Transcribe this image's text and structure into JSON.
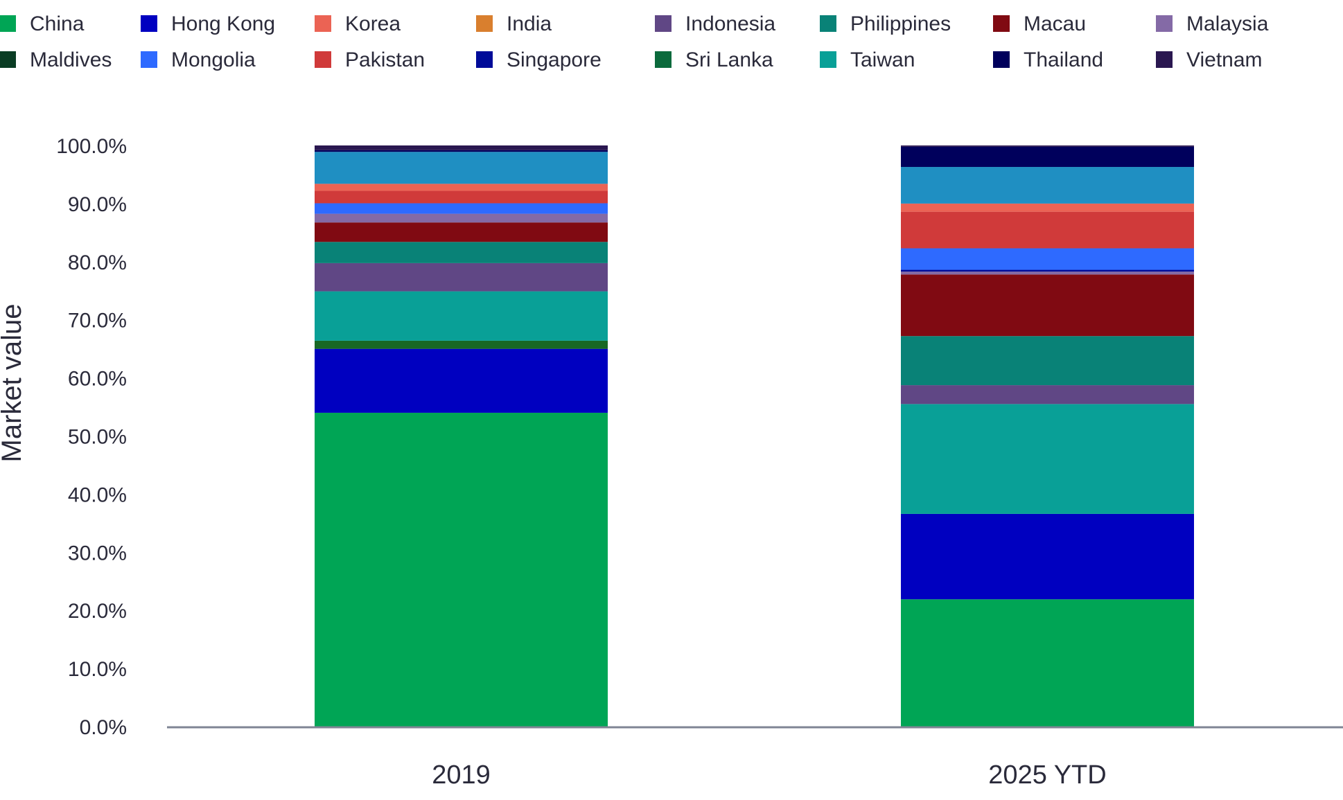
{
  "chart_data": {
    "type": "bar",
    "stacked": true,
    "title": "",
    "xlabel": "",
    "ylabel": "Market value",
    "ylim": [
      0,
      100
    ],
    "yticks": [
      "0.0%",
      "10.0%",
      "20.0%",
      "30.0%",
      "40.0%",
      "50.0%",
      "60.0%",
      "70.0%",
      "80.0%",
      "90.0%",
      "100.0%"
    ],
    "categories": [
      "2019",
      "2025 YTD"
    ],
    "grid": false,
    "legend_position": "top",
    "legend": [
      {
        "name": "China",
        "color": "#00a555"
      },
      {
        "name": "Hong Kong",
        "color": "#0000c0"
      },
      {
        "name": "Korea",
        "color": "#eb6354"
      },
      {
        "name": "India",
        "color": "#d97f2e"
      },
      {
        "name": "Indonesia",
        "color": "#604785"
      },
      {
        "name": "Philippines",
        "color": "#098277"
      },
      {
        "name": "Macau",
        "color": "#800a12"
      },
      {
        "name": "Malaysia",
        "color": "#846aa6"
      },
      {
        "name": "Maldives",
        "color": "#0a3d24"
      },
      {
        "name": "Mongolia",
        "color": "#2e6aff"
      },
      {
        "name": "Pakistan",
        "color": "#d03a3a"
      },
      {
        "name": "Singapore",
        "color": "#000b99"
      },
      {
        "name": "Sri Lanka",
        "color": "#0b6a3c"
      },
      {
        "name": "Taiwan",
        "color": "#09a097"
      },
      {
        "name": "Thailand",
        "color": "#00005c"
      },
      {
        "name": "Vietnam",
        "color": "#2a1750"
      }
    ],
    "series": [
      {
        "name": "China",
        "color": "#00a555",
        "values": [
          54.0,
          21.9
        ]
      },
      {
        "name": "Hong Kong",
        "color": "#0000c0",
        "values": [
          11.0,
          14.7
        ]
      },
      {
        "name": "Sri Lanka",
        "color": "#186824",
        "values": [
          1.4,
          0
        ]
      },
      {
        "name": "Taiwan",
        "color": "#09a097",
        "values": [
          8.5,
          18.9
        ]
      },
      {
        "name": "Indonesia",
        "color": "#604785",
        "values": [
          4.85,
          3.25
        ]
      },
      {
        "name": "Philippines",
        "color": "#098277",
        "values": [
          3.65,
          8.45
        ]
      },
      {
        "name": "Macau",
        "color": "#800a12",
        "values": [
          3.35,
          10.6
        ]
      },
      {
        "name": "Malaysia",
        "color": "#846aa6",
        "values": [
          1.5,
          0.5
        ]
      },
      {
        "name": "Singapore",
        "color": "#000b99",
        "values": [
          0,
          0.3
        ]
      },
      {
        "name": "Mongolia",
        "color": "#2e6aff",
        "values": [
          1.8,
          3.7
        ]
      },
      {
        "name": "Pakistan",
        "color": "#d03a3a",
        "values": [
          2.15,
          6.3
        ]
      },
      {
        "name": "Korea",
        "color": "#eb6354",
        "values": [
          1.2,
          1.4
        ]
      },
      {
        "color": "#1f8fc2",
        "values": [
          5.5,
          6.3
        ]
      },
      {
        "name": "Thailand",
        "color": "#00005c",
        "values": [
          0.3,
          3.5
        ]
      },
      {
        "name": "Vietnam",
        "color": "#2a1750",
        "values": [
          0.8,
          0.2
        ]
      }
    ]
  }
}
